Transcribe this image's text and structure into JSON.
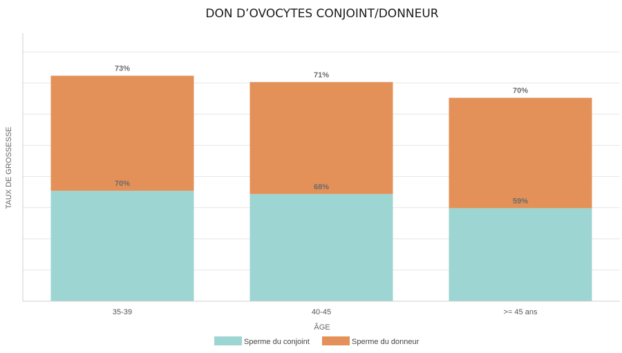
{
  "chart_data": {
    "type": "bar",
    "stacked": true,
    "title": "DON D’OVOCYTES CONJOINT/DONNEUR",
    "xlabel": "ÂGE",
    "ylabel": "TAUX DE GROSSESSE",
    "categories": [
      "35-39",
      "40-45",
      ">= 45 ans"
    ],
    "series": [
      {
        "name": "Sperme du conjoint",
        "color": "#9dd5d3",
        "values": [
          70,
          68,
          59
        ],
        "labels": [
          "70%",
          "68%",
          "59%"
        ]
      },
      {
        "name": "Sperme du donneur",
        "color": "#e39158",
        "values": [
          73,
          71,
          70
        ],
        "labels": [
          "73%",
          "71%",
          "70%"
        ]
      }
    ],
    "ylim": [
      0,
      170
    ],
    "grid": true,
    "legend": "bottom-center"
  }
}
